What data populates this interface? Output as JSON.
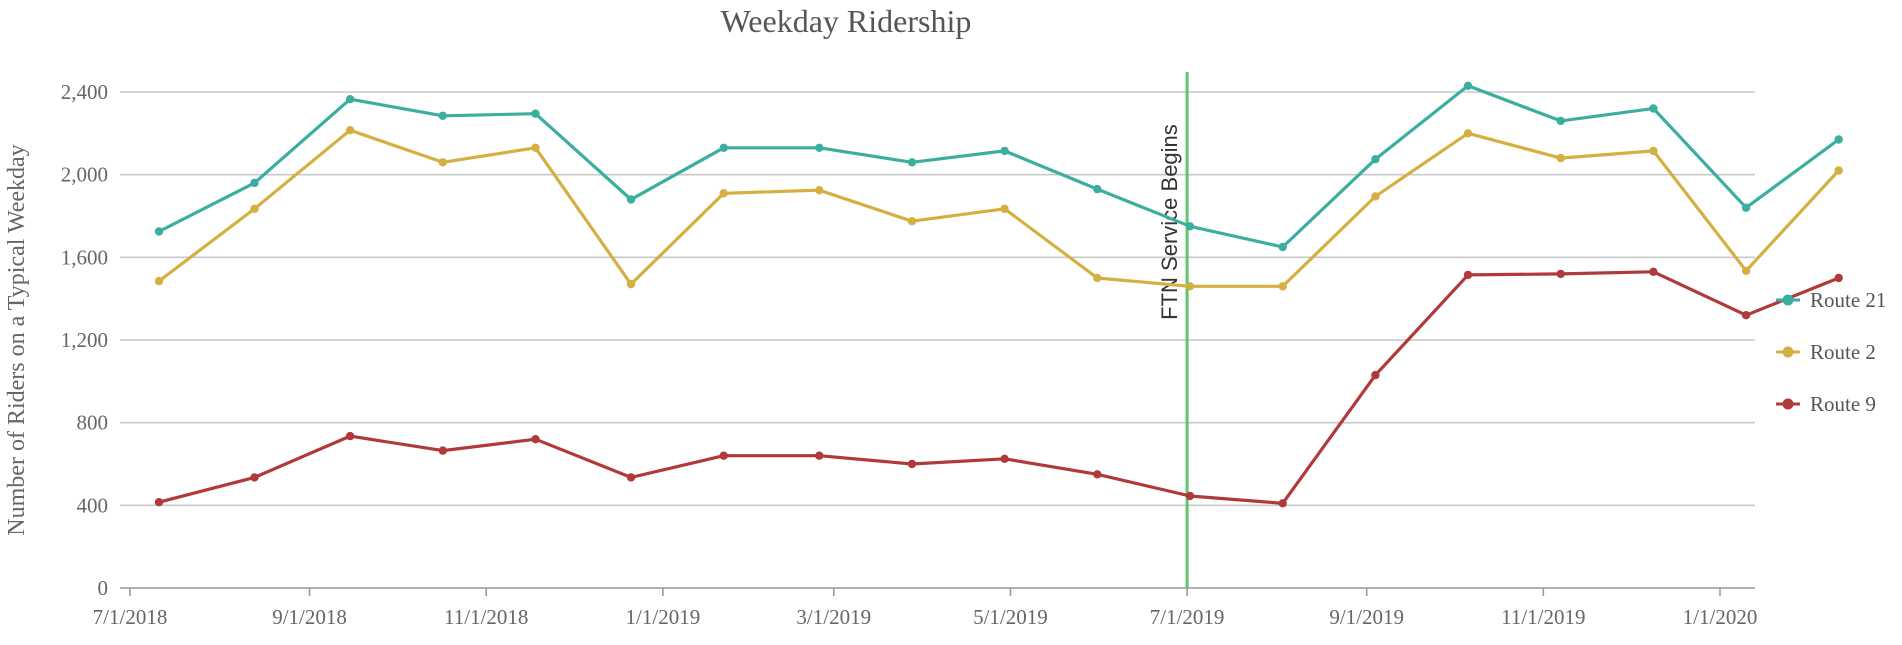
{
  "chart_data": {
    "type": "line",
    "title": "Weekday Ridership",
    "xlabel": "",
    "ylabel": "Number of Riders on a Typical Weekday",
    "x": [
      "7/1/2018",
      "8/1/2018",
      "9/1/2018",
      "10/1/2018",
      "11/1/2018",
      "12/1/2018",
      "1/1/2019",
      "2/1/2019",
      "3/1/2019",
      "4/1/2019",
      "5/1/2019",
      "6/1/2019",
      "7/1/2019",
      "8/1/2019",
      "9/1/2019",
      "10/1/2019",
      "11/1/2019",
      "12/1/2019",
      "1/1/2020"
    ],
    "x_ticks": [
      "7/1/2018",
      "9/1/2018",
      "11/1/2018",
      "1/1/2019",
      "3/1/2019",
      "5/1/2019",
      "7/1/2019",
      "9/1/2019",
      "11/1/2019",
      "1/1/2020"
    ],
    "ylim": [
      0,
      2600
    ],
    "y_ticks": [
      0,
      400,
      800,
      1200,
      1600,
      2000,
      2400
    ],
    "y_tick_labels": [
      "0",
      "400",
      "800",
      "1,200",
      "1,600",
      "2,000",
      "2,400"
    ],
    "grid": true,
    "legend_position": "right",
    "series": [
      {
        "name": "Route 21",
        "color": "#3aafa0",
        "points": [
          [
            "7/11/2018",
            1725
          ],
          [
            "8/13/2018",
            1960
          ],
          [
            "9/15/2018",
            2365
          ],
          [
            "10/17/2018",
            2285
          ],
          [
            "11/18/2018",
            2295
          ],
          [
            "12/21/2018",
            1880
          ],
          [
            "1/22/2019",
            2130
          ],
          [
            "2/24/2019",
            2130
          ],
          [
            "3/28/2019",
            2060
          ],
          [
            "4/29/2019",
            2115
          ],
          [
            "5/31/2019",
            1930
          ],
          [
            "7/2/2019",
            1750
          ],
          [
            "8/3/2019",
            1650
          ],
          [
            "9/4/2019",
            2075
          ],
          [
            "10/6/2019",
            2430
          ],
          [
            "11/7/2019",
            2260
          ],
          [
            "12/9/2019",
            2320
          ],
          [
            "1/10/2020",
            1840
          ],
          [
            "2/11/2020",
            2170
          ]
        ]
      },
      {
        "name": "Route 2",
        "color": "#d4b040",
        "points": [
          [
            "7/11/2018",
            1485
          ],
          [
            "8/13/2018",
            1835
          ],
          [
            "9/15/2018",
            2215
          ],
          [
            "10/17/2018",
            2060
          ],
          [
            "11/18/2018",
            2130
          ],
          [
            "12/21/2018",
            1470
          ],
          [
            "1/22/2019",
            1910
          ],
          [
            "2/24/2019",
            1925
          ],
          [
            "3/28/2019",
            1775
          ],
          [
            "4/29/2019",
            1835
          ],
          [
            "5/31/2019",
            1500
          ],
          [
            "7/2/2019",
            1460
          ],
          [
            "8/3/2019",
            1460
          ],
          [
            "9/4/2019",
            1895
          ],
          [
            "10/6/2019",
            2200
          ],
          [
            "11/7/2019",
            2080
          ],
          [
            "12/9/2019",
            2115
          ],
          [
            "1/10/2020",
            1535
          ],
          [
            "2/11/2020",
            2020
          ]
        ]
      },
      {
        "name": "Route 9",
        "color": "#b03a3a",
        "points": [
          [
            "7/11/2018",
            415
          ],
          [
            "8/13/2018",
            535
          ],
          [
            "9/15/2018",
            735
          ],
          [
            "10/17/2018",
            665
          ],
          [
            "11/18/2018",
            720
          ],
          [
            "12/21/2018",
            535
          ],
          [
            "1/22/2019",
            640
          ],
          [
            "2/24/2019",
            640
          ],
          [
            "3/28/2019",
            600
          ],
          [
            "4/29/2019",
            625
          ],
          [
            "5/31/2019",
            550
          ],
          [
            "7/2/2019",
            445
          ],
          [
            "8/3/2019",
            410
          ],
          [
            "9/4/2019",
            1030
          ],
          [
            "10/6/2019",
            1515
          ],
          [
            "11/7/2019",
            1520
          ],
          [
            "12/9/2019",
            1530
          ],
          [
            "1/10/2020",
            1320
          ],
          [
            "2/11/2020",
            1500
          ]
        ]
      }
    ],
    "annotations": [
      {
        "type": "vertical-line",
        "x": "7/1/2019",
        "label": "FTN Service Begins",
        "color": "#5fc46c"
      }
    ]
  }
}
